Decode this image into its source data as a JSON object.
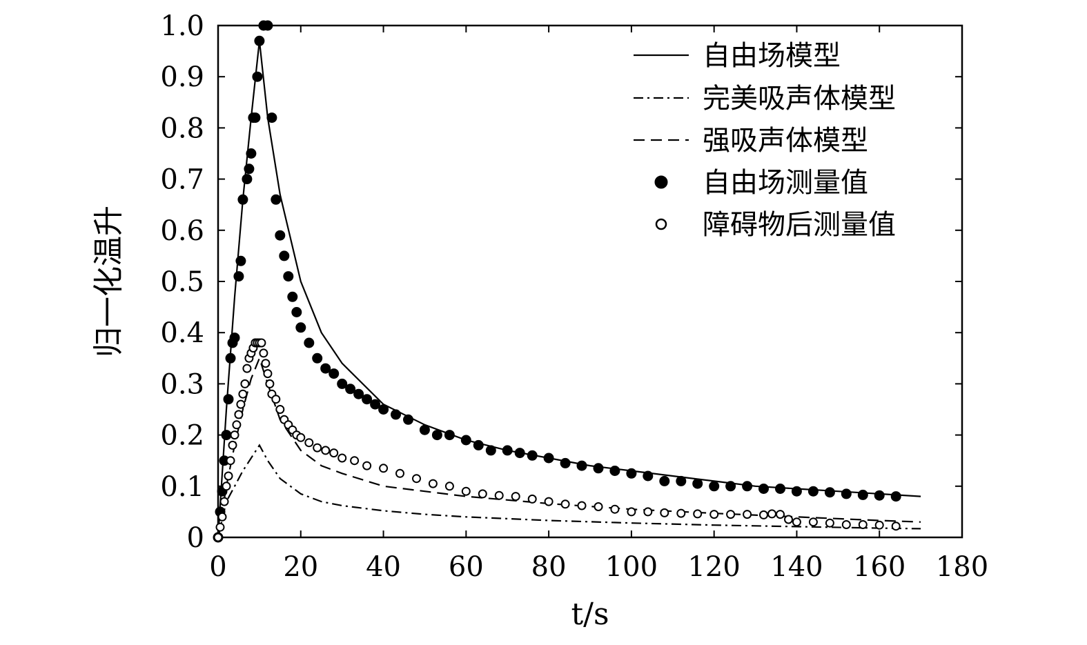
{
  "chart_data": {
    "type": "line",
    "title": "",
    "xlabel": "t/s",
    "ylabel": "归一化温升",
    "xlim": [
      0,
      180
    ],
    "ylim": [
      0,
      1.0
    ],
    "x_ticks": [
      "0",
      "20",
      "40",
      "60",
      "80",
      "100",
      "120",
      "140",
      "160",
      "180"
    ],
    "y_ticks": [
      "0",
      "0.1",
      "0.2",
      "0.3",
      "0.4",
      "0.5",
      "0.6",
      "0.7",
      "0.8",
      "0.9",
      "1.0"
    ],
    "grid": false,
    "legend_position": "top-right",
    "series": [
      {
        "name": "自由场模型",
        "style": "solid-line",
        "x": [
          0,
          2,
          4,
          6,
          8,
          10,
          12,
          15,
          20,
          25,
          30,
          40,
          50,
          60,
          70,
          80,
          90,
          100,
          110,
          120,
          130,
          140,
          150,
          160,
          170
        ],
        "y": [
          0,
          0.25,
          0.47,
          0.66,
          0.82,
          0.97,
          0.82,
          0.67,
          0.5,
          0.4,
          0.34,
          0.26,
          0.22,
          0.19,
          0.17,
          0.155,
          0.14,
          0.13,
          0.12,
          0.11,
          0.1,
          0.095,
          0.09,
          0.085,
          0.08
        ]
      },
      {
        "name": "完美吸声体模型",
        "style": "dash-dot-line",
        "x": [
          0,
          2,
          4,
          6,
          8,
          10,
          12,
          15,
          20,
          25,
          30,
          40,
          50,
          60,
          80,
          100,
          120,
          140,
          160,
          170
        ],
        "y": [
          0,
          0.07,
          0.1,
          0.13,
          0.155,
          0.18,
          0.15,
          0.115,
          0.085,
          0.07,
          0.062,
          0.052,
          0.045,
          0.04,
          0.033,
          0.028,
          0.024,
          0.021,
          0.018,
          0.017
        ]
      },
      {
        "name": "强吸声体模型",
        "style": "dashed-line",
        "x": [
          0,
          2,
          4,
          6,
          8,
          10,
          12,
          15,
          20,
          25,
          30,
          40,
          50,
          60,
          80,
          100,
          120,
          140,
          160,
          170
        ],
        "y": [
          0,
          0.1,
          0.18,
          0.25,
          0.31,
          0.35,
          0.3,
          0.23,
          0.17,
          0.14,
          0.125,
          0.1,
          0.09,
          0.08,
          0.066,
          0.055,
          0.047,
          0.04,
          0.033,
          0.03
        ]
      },
      {
        "name": "自由场测量值",
        "style": "filled-circles",
        "x": [
          0,
          0.5,
          1,
          1.5,
          2,
          2.5,
          3,
          3.5,
          4,
          5,
          5.5,
          6,
          7,
          7.5,
          8,
          8.5,
          9,
          9.5,
          10,
          11,
          12,
          13,
          14,
          15,
          16,
          17,
          18,
          19,
          20,
          22,
          24,
          26,
          28,
          30,
          32,
          34,
          36,
          38,
          40,
          43,
          46,
          50,
          53,
          56,
          60,
          63,
          66,
          70,
          73,
          76,
          80,
          84,
          88,
          92,
          96,
          100,
          104,
          108,
          112,
          116,
          120,
          124,
          128,
          132,
          136,
          140,
          144,
          148,
          152,
          156,
          160,
          164
        ],
        "y": [
          0,
          0.05,
          0.09,
          0.15,
          0.2,
          0.27,
          0.35,
          0.38,
          0.39,
          0.51,
          0.54,
          0.66,
          0.7,
          0.72,
          0.75,
          0.82,
          0.82,
          0.9,
          0.97,
          1.0,
          1.0,
          0.82,
          0.66,
          0.59,
          0.55,
          0.51,
          0.47,
          0.44,
          0.41,
          0.38,
          0.35,
          0.33,
          0.32,
          0.3,
          0.29,
          0.28,
          0.27,
          0.26,
          0.25,
          0.24,
          0.23,
          0.21,
          0.2,
          0.2,
          0.19,
          0.18,
          0.17,
          0.17,
          0.165,
          0.16,
          0.155,
          0.145,
          0.14,
          0.135,
          0.13,
          0.125,
          0.12,
          0.11,
          0.11,
          0.105,
          0.1,
          0.1,
          0.1,
          0.095,
          0.095,
          0.09,
          0.09,
          0.088,
          0.085,
          0.083,
          0.082,
          0.08
        ]
      },
      {
        "name": "障碍物后测量值",
        "style": "open-circles",
        "x": [
          0,
          0.5,
          1,
          1.5,
          2,
          2.5,
          3,
          3.5,
          4,
          4.5,
          5,
          5.5,
          6,
          6.5,
          7,
          7.5,
          8,
          8.5,
          9,
          9.5,
          10,
          10.5,
          11,
          11.5,
          12,
          12.5,
          13,
          14,
          15,
          16,
          17,
          18,
          19,
          20,
          22,
          24,
          26,
          28,
          30,
          33,
          36,
          40,
          44,
          48,
          52,
          56,
          60,
          64,
          68,
          72,
          76,
          80,
          84,
          88,
          92,
          96,
          100,
          104,
          108,
          112,
          116,
          120,
          124,
          128,
          132,
          134,
          136,
          138,
          140,
          144,
          148,
          152,
          156,
          160,
          164
        ],
        "y": [
          0,
          0.02,
          0.04,
          0.07,
          0.1,
          0.12,
          0.15,
          0.18,
          0.2,
          0.22,
          0.24,
          0.26,
          0.28,
          0.3,
          0.33,
          0.35,
          0.36,
          0.37,
          0.38,
          0.38,
          0.38,
          0.38,
          0.36,
          0.34,
          0.32,
          0.3,
          0.28,
          0.27,
          0.25,
          0.23,
          0.22,
          0.21,
          0.2,
          0.195,
          0.185,
          0.175,
          0.17,
          0.165,
          0.155,
          0.15,
          0.14,
          0.135,
          0.125,
          0.115,
          0.105,
          0.1,
          0.09,
          0.085,
          0.082,
          0.08,
          0.075,
          0.07,
          0.065,
          0.062,
          0.06,
          0.055,
          0.05,
          0.05,
          0.048,
          0.047,
          0.046,
          0.045,
          0.045,
          0.045,
          0.044,
          0.046,
          0.045,
          0.035,
          0.03,
          0.03,
          0.028,
          0.025,
          0.025,
          0.024,
          0.022
        ]
      }
    ]
  }
}
